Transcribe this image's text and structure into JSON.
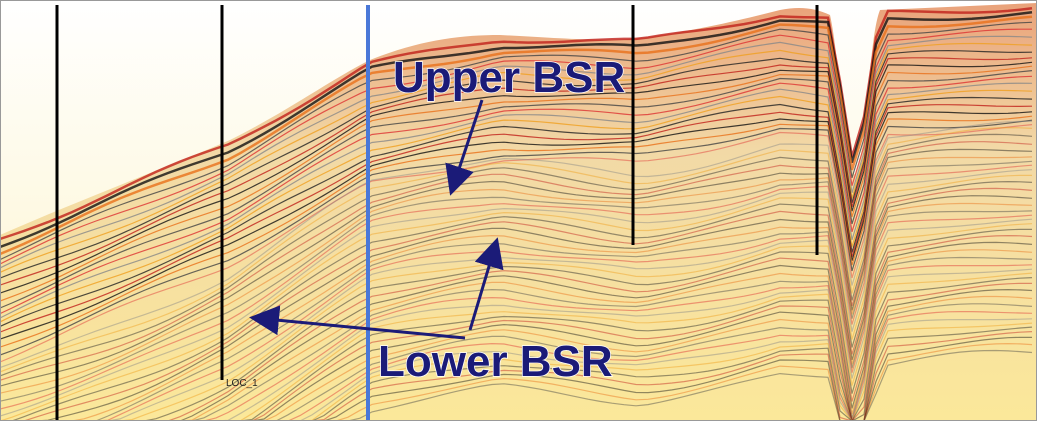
{
  "labels": {
    "upper": "Upper BSR",
    "lower": "Lower BSR",
    "well": "LOC_1"
  }
}
